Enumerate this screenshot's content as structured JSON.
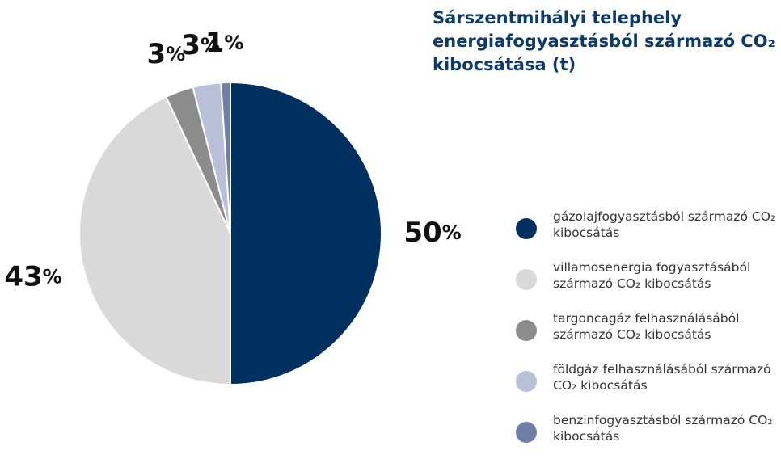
{
  "chart_data": {
    "type": "pie",
    "title": "Sárszentmihályi telephely energiafogyasztásból származó CO₂ kibocsátása (t)",
    "categories": [
      "gázolajfogyasztásból származó CO₂ kibocsátás",
      "villamosenergia fogyasztásából származó CO₂ kibocsátás",
      "targoncagáz felhasználásából származó CO₂ kibocsátás",
      "földgáz felhasználásából származó CO₂ kibocsátás",
      "benzinfogyasztásból származó CO₂ kibocsátás"
    ],
    "values": [
      50,
      43,
      3,
      3,
      1
    ],
    "value_labels": [
      "50%",
      "43%",
      "3%",
      "3%",
      "1%"
    ],
    "colors": [
      "#00305f",
      "#d9d9d9",
      "#8c8c8c",
      "#b8bfd9",
      "#6f7fa8"
    ],
    "legend": "right"
  }
}
